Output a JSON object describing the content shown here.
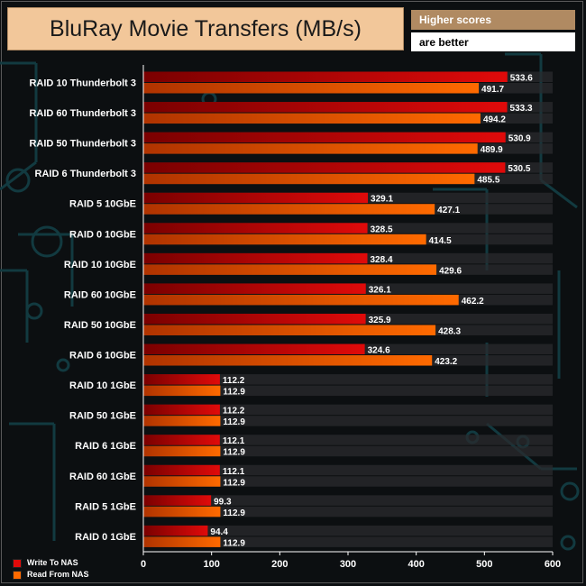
{
  "title": "BluRay Movie Transfers (MB/s)",
  "note": [
    "Higher scores",
    "are better"
  ],
  "colors": {
    "write": "#e00a0a",
    "write_dark": "#7a0000",
    "read": "#ff6a00",
    "read_dark": "#b03300",
    "track": "#2a2b2d",
    "axis": "#ffffff"
  },
  "legend": [
    {
      "label": "Write To NAS",
      "color": "#e00a0a"
    },
    {
      "label": "Read From NAS",
      "color": "#ff6a00"
    }
  ],
  "chart_data": {
    "type": "bar",
    "orientation": "horizontal",
    "title": "BluRay Movie Transfers (MB/s)",
    "xlabel": "",
    "ylabel": "",
    "xlim": [
      0,
      600
    ],
    "xticks": [
      0,
      100,
      200,
      300,
      400,
      500,
      600
    ],
    "legend_position": "bottom-left",
    "categories": [
      "RAID 10 Thunderbolt 3",
      "RAID 60 Thunderbolt 3",
      "RAID 50 Thunderbolt 3",
      "RAID 6 Thunderbolt 3",
      "RAID 5 10GbE",
      "RAID 0 10GbE",
      "RAID 10 10GbE",
      "RAID 60 10GbE",
      "RAID 50 10GbE",
      "RAID 6 10GbE",
      "RAID 10 1GbE",
      "RAID 50 1GbE",
      "RAID 6 1GbE",
      "RAID 60 1GbE",
      "RAID 5 1GbE",
      "RAID 0 1GbE"
    ],
    "series": [
      {
        "name": "Write To NAS",
        "values": [
          533.6,
          533.3,
          530.9,
          530.5,
          329.1,
          328.5,
          328.4,
          326.1,
          325.9,
          324.6,
          112.2,
          112.2,
          112.1,
          112.1,
          99.3,
          94.4
        ]
      },
      {
        "name": "Read From NAS",
        "values": [
          491.7,
          494.2,
          489.9,
          485.5,
          427.1,
          414.5,
          429.6,
          462.2,
          428.3,
          423.2,
          112.9,
          112.9,
          112.9,
          112.9,
          112.9,
          112.9
        ]
      }
    ]
  }
}
